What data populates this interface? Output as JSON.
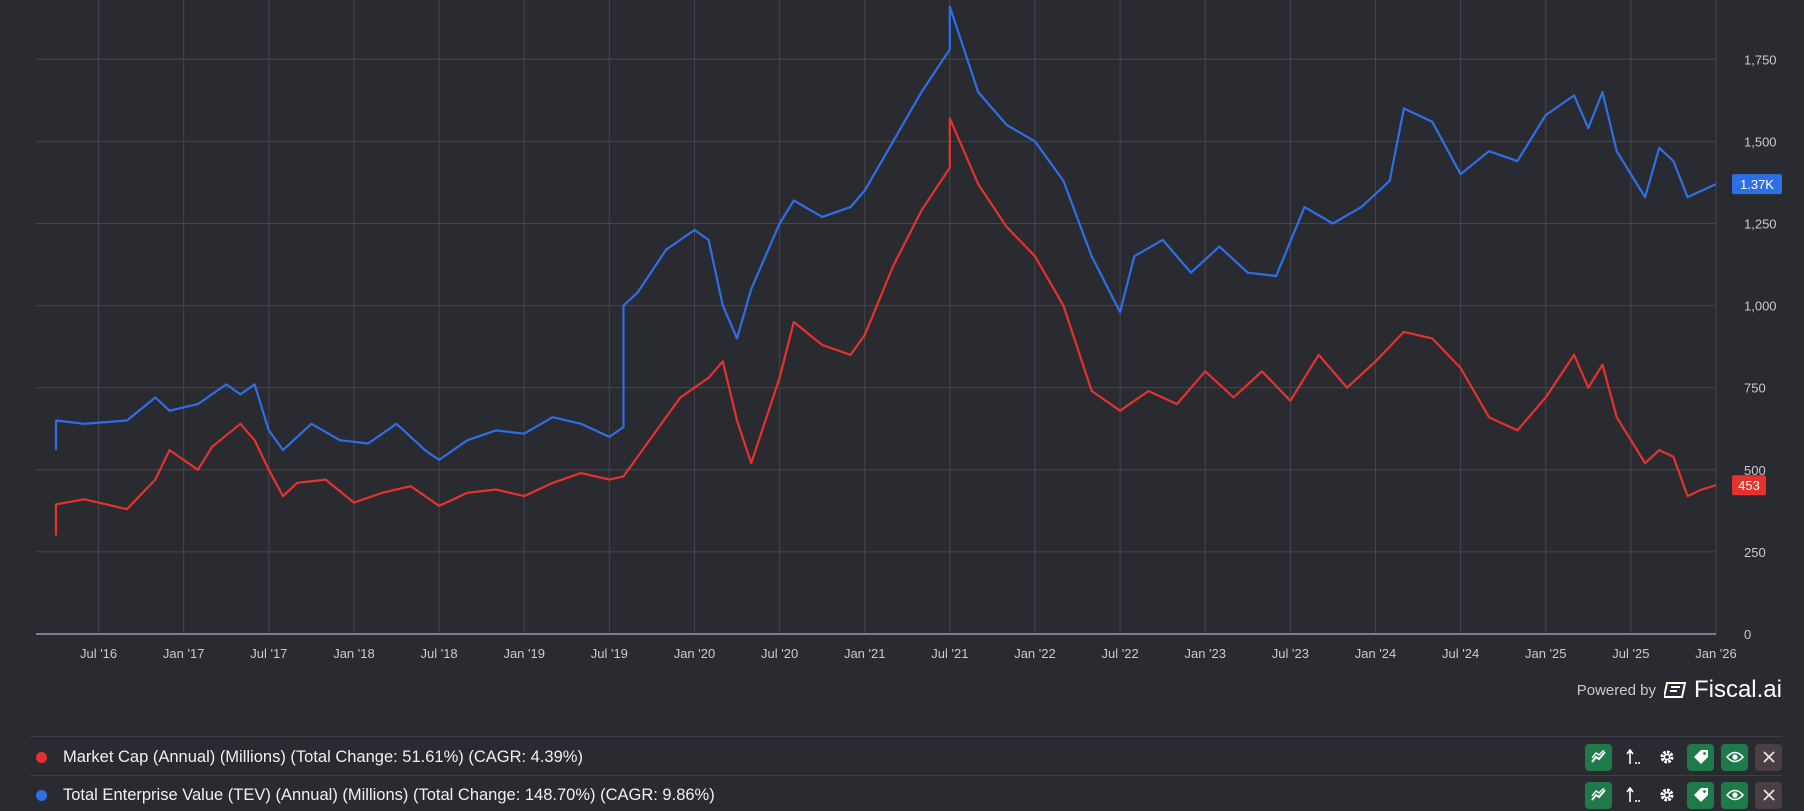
{
  "chart_data": {
    "type": "line",
    "x_labels": [
      "Jul '16",
      "Jan '17",
      "Jul '17",
      "Jan '18",
      "Jul '18",
      "Jan '19",
      "Jul '19",
      "Jan '20",
      "Jul '20",
      "Jan '21",
      "Jul '21",
      "Jan '22",
      "Jul '22",
      "Jan '23",
      "Jul '23",
      "Jan '24",
      "Jul '24",
      "Jan '25",
      "Jul '25",
      "Jan '26"
    ],
    "y_ticks": [
      "0",
      "250",
      "500",
      "750",
      "1,000",
      "1,250",
      "1,500",
      "1,750"
    ],
    "ylim": [
      0,
      1900
    ],
    "x_range": [
      "2016-04",
      "2026-01"
    ],
    "grid": true,
    "series": [
      {
        "name": "Market Cap (Annual) (Millions)",
        "color": "#e5322d",
        "end_label": "453",
        "points": [
          [
            "2016-04",
            300
          ],
          [
            "2016-04",
            395
          ],
          [
            "2016-06",
            410
          ],
          [
            "2016-09",
            380
          ],
          [
            "2016-11",
            470
          ],
          [
            "2016-12",
            560
          ],
          [
            "2017-02",
            500
          ],
          [
            "2017-03",
            570
          ],
          [
            "2017-05",
            640
          ],
          [
            "2017-06",
            590
          ],
          [
            "2017-07",
            500
          ],
          [
            "2017-08",
            420
          ],
          [
            "2017-09",
            460
          ],
          [
            "2017-11",
            470
          ],
          [
            "2018-01",
            400
          ],
          [
            "2018-03",
            430
          ],
          [
            "2018-05",
            450
          ],
          [
            "2018-07",
            390
          ],
          [
            "2018-09",
            430
          ],
          [
            "2018-11",
            440
          ],
          [
            "2019-01",
            420
          ],
          [
            "2019-03",
            460
          ],
          [
            "2019-05",
            490
          ],
          [
            "2019-07",
            470
          ],
          [
            "2019-08",
            480
          ],
          [
            "2019-10",
            600
          ],
          [
            "2019-12",
            720
          ],
          [
            "2020-02",
            780
          ],
          [
            "2020-03",
            830
          ],
          [
            "2020-04",
            650
          ],
          [
            "2020-05",
            520
          ],
          [
            "2020-07",
            780
          ],
          [
            "2020-08",
            950
          ],
          [
            "2020-10",
            880
          ],
          [
            "2020-12",
            850
          ],
          [
            "2021-01",
            910
          ],
          [
            "2021-03",
            1120
          ],
          [
            "2021-05",
            1290
          ],
          [
            "2021-07",
            1420
          ],
          [
            "2021-07",
            1570
          ],
          [
            "2021-09",
            1370
          ],
          [
            "2021-11",
            1240
          ],
          [
            "2022-01",
            1150
          ],
          [
            "2022-03",
            1000
          ],
          [
            "2022-05",
            740
          ],
          [
            "2022-07",
            680
          ],
          [
            "2022-09",
            740
          ],
          [
            "2022-11",
            700
          ],
          [
            "2023-01",
            800
          ],
          [
            "2023-03",
            720
          ],
          [
            "2023-05",
            800
          ],
          [
            "2023-07",
            710
          ],
          [
            "2023-09",
            850
          ],
          [
            "2023-11",
            750
          ],
          [
            "2024-01",
            830
          ],
          [
            "2024-03",
            920
          ],
          [
            "2024-05",
            900
          ],
          [
            "2024-07",
            810
          ],
          [
            "2024-09",
            660
          ],
          [
            "2024-11",
            620
          ],
          [
            "2025-01",
            720
          ],
          [
            "2025-03",
            850
          ],
          [
            "2025-04",
            750
          ],
          [
            "2025-05",
            820
          ],
          [
            "2025-06",
            660
          ],
          [
            "2025-08",
            520
          ],
          [
            "2025-09",
            560
          ],
          [
            "2025-10",
            540
          ],
          [
            "2025-11",
            420
          ],
          [
            "2025-12",
            440
          ],
          [
            "2026-01",
            453
          ]
        ]
      },
      {
        "name": "Total Enterprise Value (TEV) (Annual) (Millions)",
        "color": "#2e6fe6",
        "end_label": "1.37K",
        "points": [
          [
            "2016-04",
            560
          ],
          [
            "2016-04",
            650
          ],
          [
            "2016-06",
            640
          ],
          [
            "2016-09",
            650
          ],
          [
            "2016-11",
            720
          ],
          [
            "2016-12",
            680
          ],
          [
            "2017-02",
            700
          ],
          [
            "2017-04",
            760
          ],
          [
            "2017-05",
            730
          ],
          [
            "2017-06",
            760
          ],
          [
            "2017-07",
            620
          ],
          [
            "2017-08",
            560
          ],
          [
            "2017-10",
            640
          ],
          [
            "2017-12",
            590
          ],
          [
            "2018-02",
            580
          ],
          [
            "2018-04",
            640
          ],
          [
            "2018-06",
            560
          ],
          [
            "2018-07",
            530
          ],
          [
            "2018-09",
            590
          ],
          [
            "2018-11",
            620
          ],
          [
            "2019-01",
            610
          ],
          [
            "2019-03",
            660
          ],
          [
            "2019-05",
            640
          ],
          [
            "2019-07",
            600
          ],
          [
            "2019-08",
            630
          ],
          [
            "2019-08",
            1000
          ],
          [
            "2019-09",
            1040
          ],
          [
            "2019-11",
            1170
          ],
          [
            "2020-01",
            1230
          ],
          [
            "2020-02",
            1200
          ],
          [
            "2020-03",
            1000
          ],
          [
            "2020-04",
            900
          ],
          [
            "2020-05",
            1050
          ],
          [
            "2020-07",
            1250
          ],
          [
            "2020-08",
            1320
          ],
          [
            "2020-10",
            1270
          ],
          [
            "2020-12",
            1300
          ],
          [
            "2021-01",
            1350
          ],
          [
            "2021-03",
            1500
          ],
          [
            "2021-05",
            1650
          ],
          [
            "2021-07",
            1780
          ],
          [
            "2021-07",
            1910
          ],
          [
            "2021-09",
            1650
          ],
          [
            "2021-11",
            1550
          ],
          [
            "2022-01",
            1500
          ],
          [
            "2022-03",
            1380
          ],
          [
            "2022-05",
            1150
          ],
          [
            "2022-07",
            980
          ],
          [
            "2022-08",
            1150
          ],
          [
            "2022-10",
            1200
          ],
          [
            "2022-12",
            1100
          ],
          [
            "2023-02",
            1180
          ],
          [
            "2023-04",
            1100
          ],
          [
            "2023-06",
            1090
          ],
          [
            "2023-08",
            1300
          ],
          [
            "2023-10",
            1250
          ],
          [
            "2023-12",
            1300
          ],
          [
            "2024-02",
            1380
          ],
          [
            "2024-03",
            1600
          ],
          [
            "2024-05",
            1560
          ],
          [
            "2024-07",
            1400
          ],
          [
            "2024-09",
            1470
          ],
          [
            "2024-11",
            1440
          ],
          [
            "2025-01",
            1580
          ],
          [
            "2025-03",
            1640
          ],
          [
            "2025-04",
            1540
          ],
          [
            "2025-05",
            1650
          ],
          [
            "2025-06",
            1470
          ],
          [
            "2025-08",
            1330
          ],
          [
            "2025-09",
            1480
          ],
          [
            "2025-10",
            1440
          ],
          [
            "2025-11",
            1330
          ],
          [
            "2025-12",
            1350
          ],
          [
            "2026-01",
            1370
          ]
        ]
      }
    ]
  },
  "powered_by": "Powered by",
  "brand": "Fiscal.ai",
  "legend": [
    {
      "color": "#e5322d",
      "text": "Market Cap (Annual) (Millions) (Total Change: 51.61%) (CAGR: 4.39%)",
      "actions": [
        "trend-icon",
        "sort-icon",
        "gear-icon",
        "tag-icon",
        "eye-icon",
        "close-icon"
      ]
    },
    {
      "color": "#2e6fe6",
      "text": "Total Enterprise Value (TEV) (Annual) (Millions) (Total Change: 148.70%) (CAGR: 9.86%)",
      "actions": [
        "trend-icon",
        "sort-icon",
        "gear-icon",
        "tag-icon",
        "eye-icon",
        "close-icon"
      ]
    }
  ]
}
